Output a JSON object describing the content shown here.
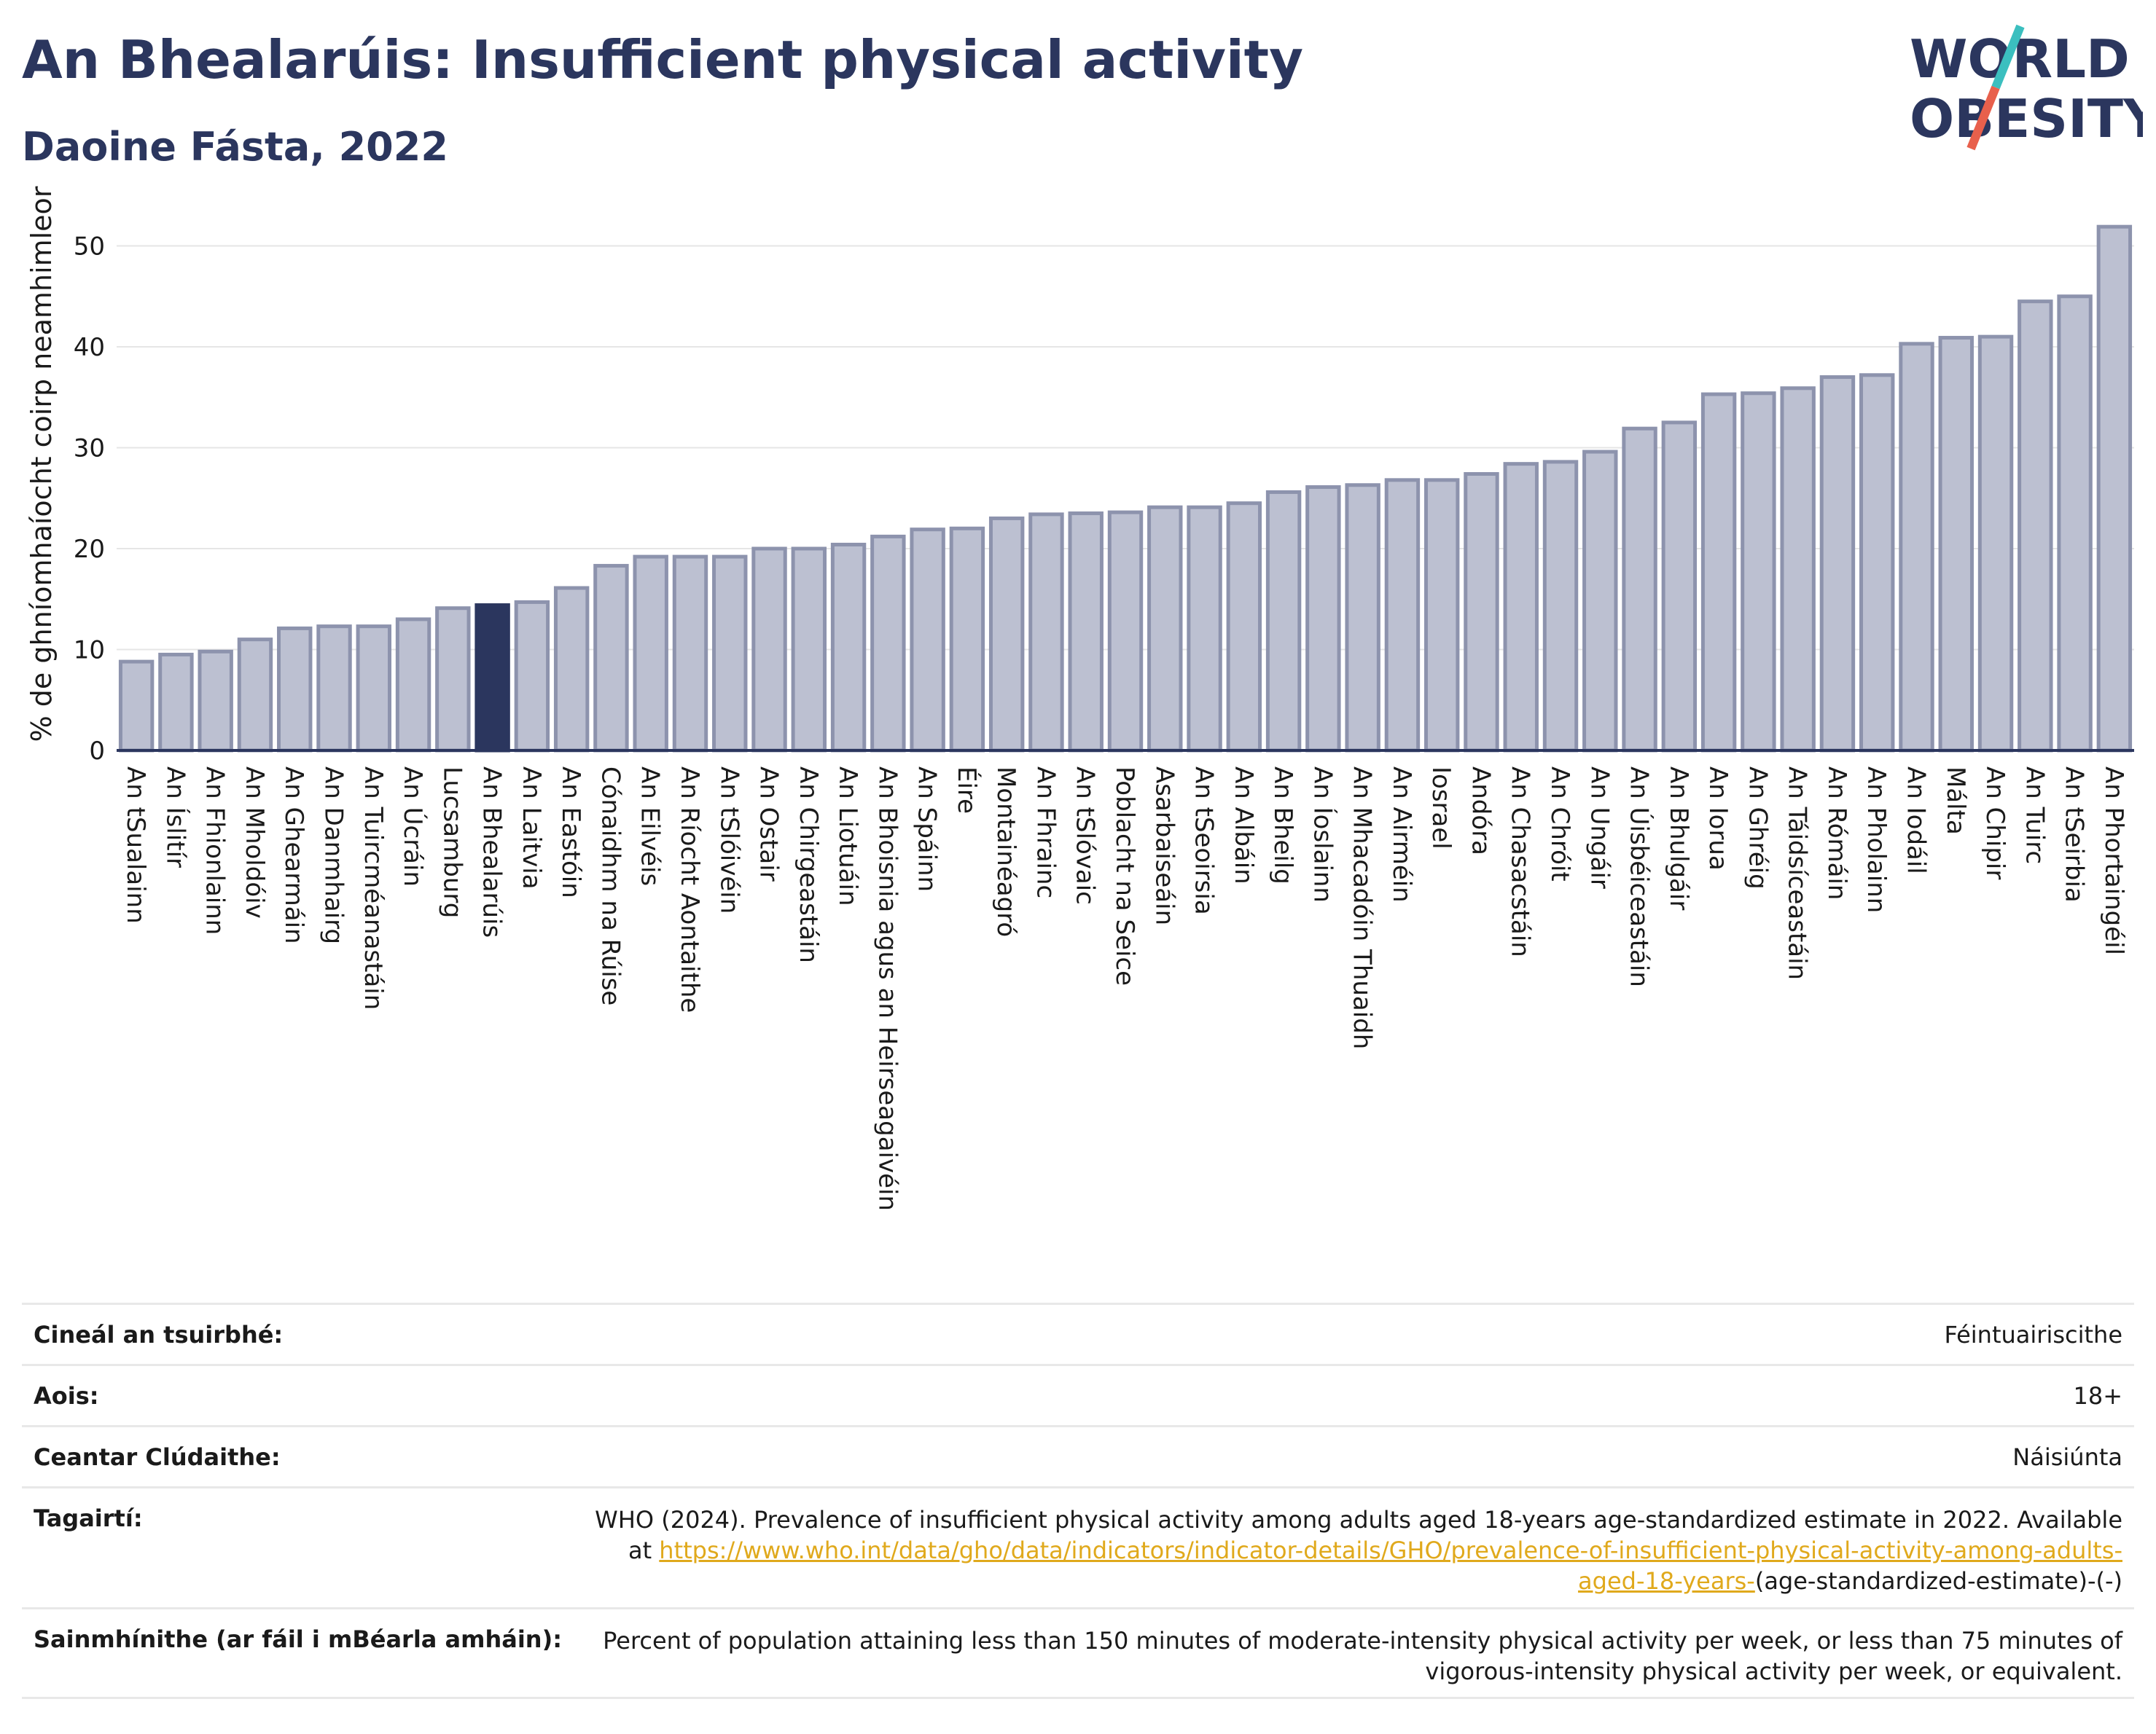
{
  "header": {
    "title": "An Bhealarúis: Insufficient physical activity",
    "subtitle": "Daoine Fásta, 2022"
  },
  "logo": {
    "line1": "WORLD",
    "line2": "OBESITY",
    "text_color": "#2b365e",
    "slash_colors": [
      "#3bbfbf",
      "#e8604c"
    ]
  },
  "colors": {
    "bar": "#bcc0d1",
    "bar_border": "#8d93ad",
    "highlight": "#2b365e",
    "grid": "#e6e6e6",
    "axis": "#2b365e"
  },
  "chart_data": {
    "type": "bar",
    "ylabel": "% de ghníomhaíocht coirp neamhimleor",
    "ylim": [
      0,
      53
    ],
    "yticks": [
      0,
      10,
      20,
      30,
      40,
      50
    ],
    "highlight": "An Bhealarúis",
    "grid": true,
    "categories": [
      "An tSualainn",
      "An Íslitír",
      "An Fhionlainn",
      "An Mholdóiv",
      "An Ghearmáin",
      "An Danmhairg",
      "An Tuircméanastáin",
      "An Úcráin",
      "Lucsamburg",
      "An Bhealarúis",
      "An Laitvia",
      "An Eastóin",
      "Cónaidhm na Rúise",
      "An Eilvéis",
      "An Ríocht Aontaithe",
      "An tSlóivéin",
      "An Ostair",
      "An Chirgeastáin",
      "An Liotuáin",
      "An Bhoisnia agus an Heirseagaivéin",
      "An Spáinn",
      "Éire",
      "Montainéagró",
      "An Fhrainc",
      "An tSlóvaic",
      "Poblacht na Seice",
      "Asarbaiseáin",
      "An tSeoirsia",
      "An Albáin",
      "An Bheilg",
      "An Íoslainn",
      "An Mhacadóin Thuaidh",
      "An Airméin",
      "Iosrael",
      "Andóra",
      "An Chasacstáin",
      "An Chróit",
      "An Ungáir",
      "An Úisbéiceastáin",
      "An Bhulgáir",
      "An Iorua",
      "An Ghréig",
      "An Táidsíceastáin",
      "An Rómáin",
      "An Pholainn",
      "An Iodáil",
      "Málta",
      "An Chipir",
      "An Tuirc",
      "An tSeirbia",
      "An Phortaingéil"
    ],
    "values": [
      8.8,
      9.5,
      9.8,
      11.0,
      12.1,
      12.3,
      12.3,
      13.0,
      14.1,
      14.4,
      14.7,
      16.1,
      18.3,
      19.2,
      19.2,
      19.2,
      20.0,
      20.0,
      20.4,
      21.2,
      21.9,
      22.0,
      23.0,
      23.4,
      23.5,
      23.6,
      24.1,
      24.1,
      24.5,
      25.6,
      26.1,
      26.3,
      26.8,
      26.8,
      27.4,
      28.4,
      28.6,
      29.6,
      31.9,
      32.5,
      35.3,
      35.4,
      35.9,
      37.0,
      37.2,
      40.3,
      40.9,
      41.0,
      44.5,
      45.0,
      51.9
    ]
  },
  "metadata": {
    "rows": [
      {
        "label": "Cineál an tsuirbhé:",
        "value": "Féintuairiscithe"
      },
      {
        "label": "Aois:",
        "value": "18+"
      },
      {
        "label": "Ceantar Clúdaithe:",
        "value": "Náisiúnta"
      }
    ],
    "references": {
      "label": "Tagairtí:",
      "text": "WHO (2024). Prevalence of insufficient physical activity among adults aged 18-years age-standardized estimate in 2022. Available at",
      "link": "https://www.who.int/data/gho/data/indicators/indicator-details/GHO/prevalence-of-insufficient-physical-activity-among-adults-aged-18-years-",
      "suffix": "(age-standardized-estimate)-(-)"
    },
    "definitions": {
      "label": "Sainmhínithe (ar fáil i mBéarla amháin):",
      "text": "Percent of population attaining less than 150 minutes of moderate-intensity physical activity per week, or less than 75 minutes of vigorous-intensity physical activity per week, or equivalent."
    }
  }
}
